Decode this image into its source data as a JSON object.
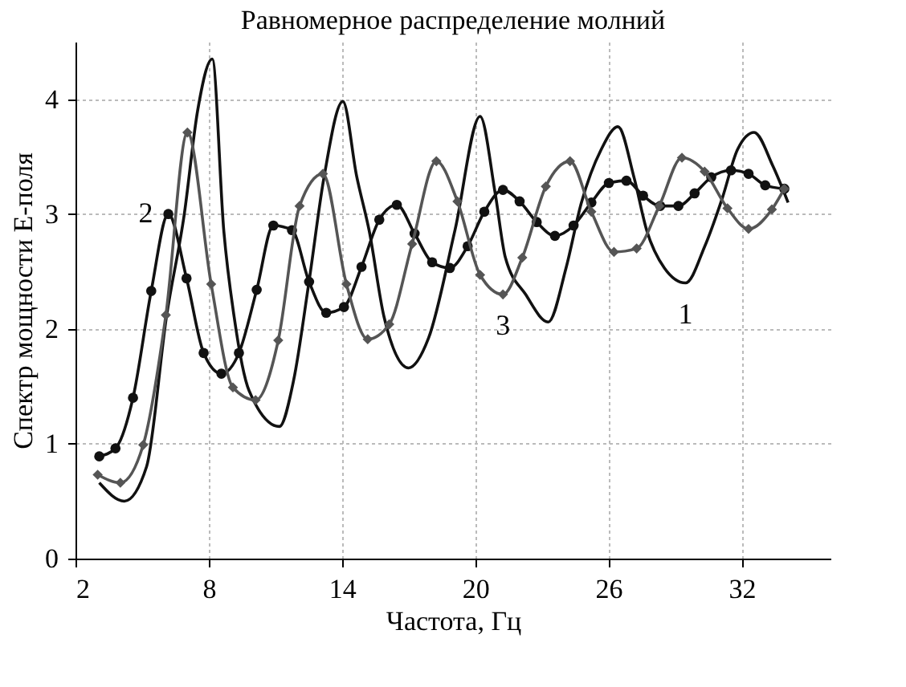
{
  "chart_data": {
    "type": "line",
    "title": "Равномерное распределение молний",
    "xlabel": "Частота, Гц",
    "ylabel": "Спектр мощности E-поля",
    "xlim": [
      2,
      36
    ],
    "xticks": [
      2,
      8,
      14,
      20,
      26,
      32
    ],
    "ylim": [
      0,
      4.5
    ],
    "yticks": [
      0,
      1,
      2,
      3,
      4
    ],
    "grid": true,
    "line_style": "solid",
    "series": [
      {
        "color": "#111111",
        "marker": "none",
        "x": [
          3.07,
          4.2,
          5.2,
          6.1,
          6.9,
          7.5,
          8.16,
          8.68,
          9.14,
          9.82,
          11.18,
          11.82,
          12.5,
          13.2,
          14.04,
          14.66,
          15.23,
          15.9,
          17.0,
          17.9,
          19.09,
          20.22,
          20.9,
          21.36,
          22.27,
          23.29,
          24.09,
          24.77,
          25.67,
          26.43,
          27.15,
          27.72,
          28.52,
          29.47,
          30.34,
          31.13,
          31.81,
          32.56,
          33.4,
          34.09
        ],
        "values": [
          0.66,
          0.5,
          0.8,
          2.11,
          3.0,
          3.9,
          4.35,
          2.85,
          2.11,
          1.46,
          1.15,
          1.55,
          2.39,
          3.33,
          3.98,
          3.33,
          2.85,
          2.1,
          1.66,
          1.92,
          2.86,
          3.85,
          3.18,
          2.62,
          2.3,
          2.06,
          2.53,
          3.09,
          3.56,
          3.76,
          3.32,
          2.86,
          2.53,
          2.4,
          2.72,
          3.14,
          3.56,
          3.71,
          3.42,
          3.1
        ]
      },
      {
        "color": "#111111",
        "marker": "circle",
        "x": [
          3.07,
          3.8,
          4.59,
          5.41,
          6.18,
          7.0,
          7.77,
          8.57,
          9.36,
          10.16,
          10.91,
          11.75,
          12.52,
          13.29,
          14.09,
          14.88,
          15.68,
          16.47,
          17.27,
          18.06,
          18.86,
          19.66,
          20.41,
          21.25,
          22.0,
          22.77,
          23.59,
          24.43,
          25.23,
          26.02,
          26.81,
          27.56,
          28.33,
          29.15,
          29.88,
          30.63,
          31.52,
          32.31,
          33.06,
          33.92
        ],
        "values": [
          0.89,
          0.96,
          1.4,
          2.33,
          3.0,
          2.44,
          1.79,
          1.61,
          1.79,
          2.34,
          2.9,
          2.86,
          2.41,
          2.14,
          2.19,
          2.54,
          2.95,
          3.08,
          2.83,
          2.58,
          2.53,
          2.72,
          3.02,
          3.21,
          3.11,
          2.93,
          2.81,
          2.9,
          3.1,
          3.27,
          3.29,
          3.16,
          3.07,
          3.07,
          3.18,
          3.32,
          3.38,
          3.35,
          3.25,
          3.22
        ]
      },
      {
        "color": "#555555",
        "marker": "diamond",
        "x": [
          3.0,
          4.02,
          5.05,
          6.07,
          7.04,
          8.11,
          9.09,
          10.11,
          11.13,
          12.09,
          13.14,
          14.2,
          15.16,
          16.13,
          17.16,
          18.25,
          19.2,
          20.22,
          21.25,
          22.12,
          23.18,
          24.27,
          25.23,
          26.25,
          27.27,
          28.29,
          29.31,
          30.33,
          31.36,
          32.31,
          33.36,
          33.92
        ],
        "values": [
          0.73,
          0.66,
          0.99,
          2.12,
          3.71,
          2.39,
          1.49,
          1.38,
          1.9,
          3.07,
          3.35,
          2.39,
          1.91,
          2.04,
          2.74,
          3.46,
          3.11,
          2.47,
          2.3,
          2.62,
          3.24,
          3.46,
          3.02,
          2.67,
          2.7,
          3.07,
          3.49,
          3.37,
          3.05,
          2.87,
          3.04,
          3.22
        ]
      }
    ],
    "annotations": [
      {
        "text": "1",
        "x": 29.47,
        "y": 2.4
      },
      {
        "text": "2",
        "x": 6.18,
        "y": 3.0
      },
      {
        "text": "3",
        "x": 21.25,
        "y": 2.3
      }
    ]
  }
}
